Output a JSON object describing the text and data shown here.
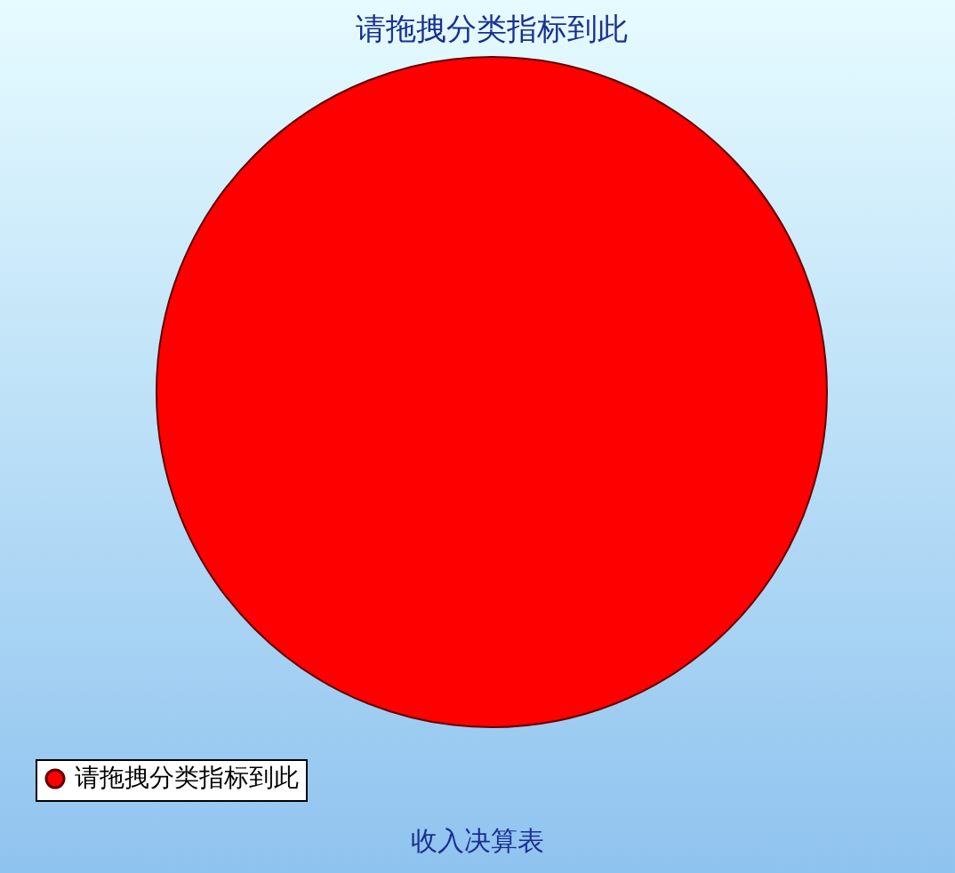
{
  "chart_data": {
    "type": "pie",
    "title": "请拖拽分类指标到此",
    "categories": [
      "请拖拽分类指标到此"
    ],
    "values": [
      100
    ],
    "colors": [
      "#ff0000"
    ],
    "legend": "bottom",
    "annotations": [
      "收入决算表"
    ]
  }
}
